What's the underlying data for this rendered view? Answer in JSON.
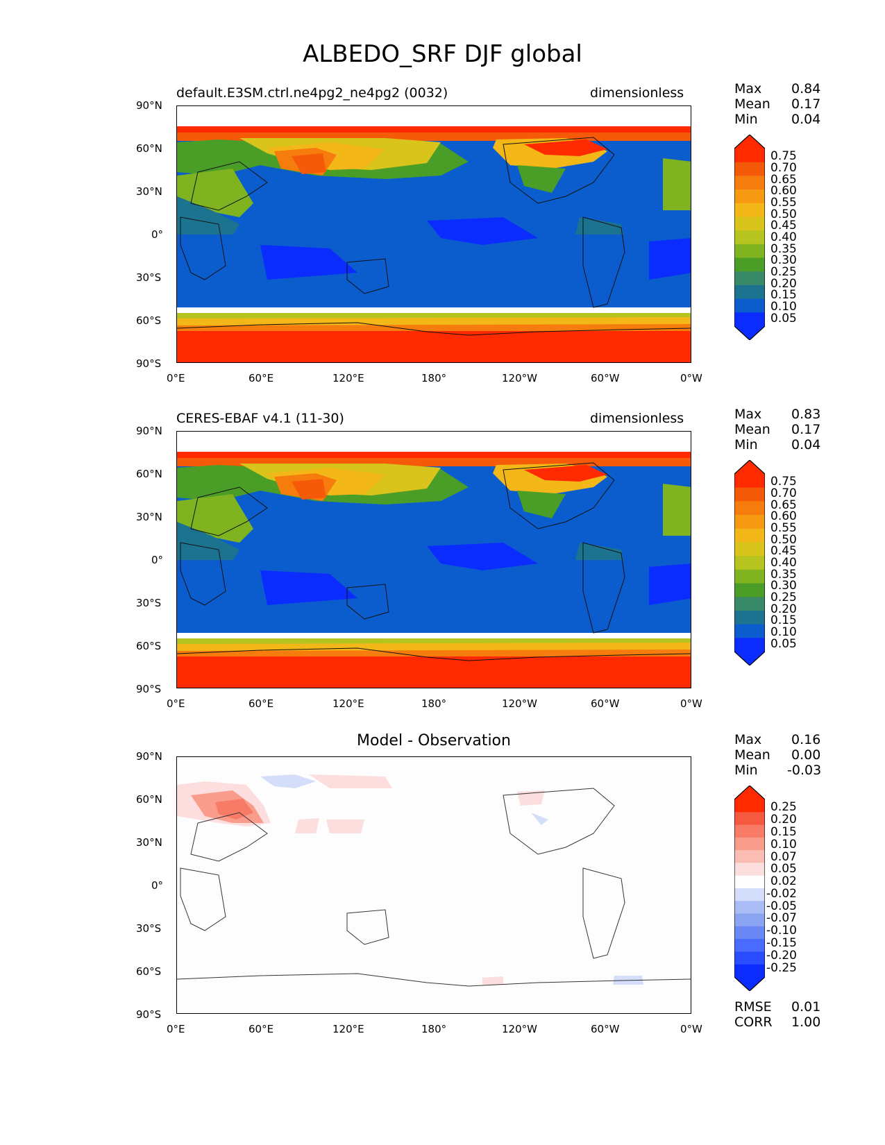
{
  "title": "ALBEDO_SRF DJF global",
  "lat_labels": [
    "90°N",
    "60°N",
    "30°N",
    "0°",
    "30°S",
    "60°S",
    "90°S"
  ],
  "lon_labels": [
    "0°E",
    "60°E",
    "120°E",
    "180°",
    "120°W",
    "60°W",
    "0°W"
  ],
  "colors": {
    "field": [
      "#0a2cff",
      "#0b5ccc",
      "#1c738f",
      "#3a8a6a",
      "#4a9e28",
      "#7fb420",
      "#b5c41e",
      "#d8c41a",
      "#f3b817",
      "#f69a12",
      "#f57c0d",
      "#f55a09",
      "#ff2a00"
    ],
    "diff": [
      "#0a2cff",
      "#2a4dff",
      "#4a6bff",
      "#6a88f5",
      "#8aa4f2",
      "#aabcf5",
      "#d4defa",
      "#fdfdfd",
      "#fcdede",
      "#fbbdb3",
      "#f99c8c",
      "#f77b66",
      "#f55a40",
      "#ff2a00"
    ]
  },
  "panels": [
    {
      "title_left": "default.E3SM.ctrl.ne4pg2_ne4pg2 (0032)",
      "title_center": "",
      "title_right": "dimensionless",
      "stats": [
        {
          "label": "Max",
          "value": "0.84"
        },
        {
          "label": "Mean",
          "value": "0.17"
        },
        {
          "label": "Min",
          "value": "0.04"
        }
      ],
      "colorbar_type": "field",
      "colorbar_ticks": [
        "0.75",
        "0.70",
        "0.65",
        "0.60",
        "0.55",
        "0.50",
        "0.45",
        "0.40",
        "0.35",
        "0.30",
        "0.25",
        "0.20",
        "0.15",
        "0.10",
        "0.05"
      ]
    },
    {
      "title_left": "CERES-EBAF v4.1 (11-30)",
      "title_center": "",
      "title_right": "dimensionless",
      "stats": [
        {
          "label": "Max",
          "value": "0.83"
        },
        {
          "label": "Mean",
          "value": "0.17"
        },
        {
          "label": "Min",
          "value": "0.04"
        }
      ],
      "colorbar_type": "field",
      "colorbar_ticks": [
        "0.75",
        "0.70",
        "0.65",
        "0.60",
        "0.55",
        "0.50",
        "0.45",
        "0.40",
        "0.35",
        "0.30",
        "0.25",
        "0.20",
        "0.15",
        "0.10",
        "0.05"
      ]
    },
    {
      "title_left": "",
      "title_center": "Model - Observation",
      "title_right": "",
      "stats": [
        {
          "label": "Max",
          "value": "0.16"
        },
        {
          "label": "Mean",
          "value": "0.00"
        },
        {
          "label": "Min",
          "value": "-0.03"
        }
      ],
      "colorbar_type": "diff",
      "colorbar_ticks": [
        "0.25",
        "0.20",
        "0.15",
        "0.10",
        "0.07",
        "0.05",
        "0.02",
        "-0.02",
        "-0.05",
        "-0.07",
        "-0.10",
        "-0.15",
        "-0.20",
        "-0.25"
      ],
      "extra_stats": [
        {
          "label": "RMSE",
          "value": "0.01"
        },
        {
          "label": "CORR",
          "value": "1.00"
        }
      ]
    }
  ]
}
